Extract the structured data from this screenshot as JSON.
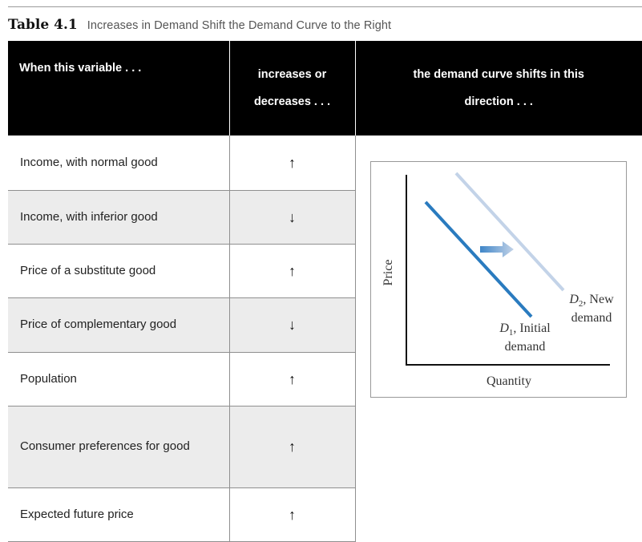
{
  "caption": {
    "number": "Table 4.1",
    "title": "Increases in Demand Shift the Demand Curve to the Right"
  },
  "headers": {
    "variable": "When this variable . . .",
    "change_line1": "increases or",
    "change_line2": "decreases . . .",
    "shift_line1": "the demand curve shifts in this",
    "shift_line2": "direction . . ."
  },
  "rows": [
    {
      "variable": "Income, with normal good",
      "change": "↑"
    },
    {
      "variable": "Income, with inferior good",
      "change": "↓"
    },
    {
      "variable": "Price of a substitute good",
      "change": "↑"
    },
    {
      "variable": "Price of complementary good",
      "change": "↓"
    },
    {
      "variable": "Population",
      "change": "↑"
    },
    {
      "variable": "Consumer preferences for good",
      "change": "↑"
    },
    {
      "variable": "Expected future price",
      "change": "↑"
    }
  ],
  "figure": {
    "y_axis_label": "Price",
    "x_axis_label": "Quantity",
    "d1_symbol": "D",
    "d1_sub": "1",
    "d1_text": ", Initial",
    "d1_text2": "demand",
    "d2_symbol": "D",
    "d2_sub": "2",
    "d2_text": ", New",
    "d2_text2": "demand",
    "colors": {
      "d1": "#2a7bbf",
      "d2": "#c3d3e8",
      "arrow": "#3f86c8"
    }
  }
}
